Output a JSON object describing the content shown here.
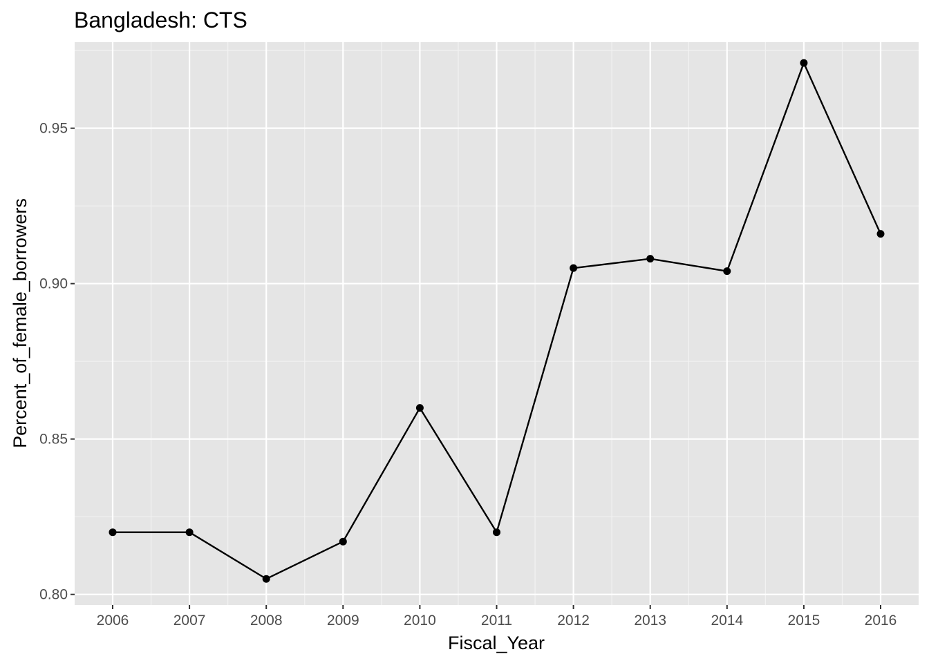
{
  "chart_data": {
    "type": "line",
    "title": "Bangladesh:  CTS",
    "xlabel": "Fiscal_Year",
    "ylabel": "Percent_of_female_borrowers",
    "x": [
      "2006",
      "2007",
      "2008",
      "2009",
      "2010",
      "2011",
      "2012",
      "2013",
      "2014",
      "2015",
      "2016"
    ],
    "series": [
      {
        "values": [
          0.82,
          0.82,
          0.805,
          0.817,
          0.86,
          0.82,
          0.905,
          0.908,
          0.904,
          0.971,
          0.916
        ]
      }
    ],
    "yticks": [
      "0.80",
      "0.85",
      "0.90",
      "0.95"
    ],
    "ylim": [
      0.7966,
      0.9777
    ],
    "grid": true,
    "legend": "none",
    "colors": {
      "panel_background": "#e5e5e5",
      "grid_major": "#ffffff",
      "grid_minor": "#f2f2f2",
      "line": "#000000",
      "point": "#000000",
      "tick_text": "#4d4d4d",
      "tick_mark": "#333333"
    }
  }
}
